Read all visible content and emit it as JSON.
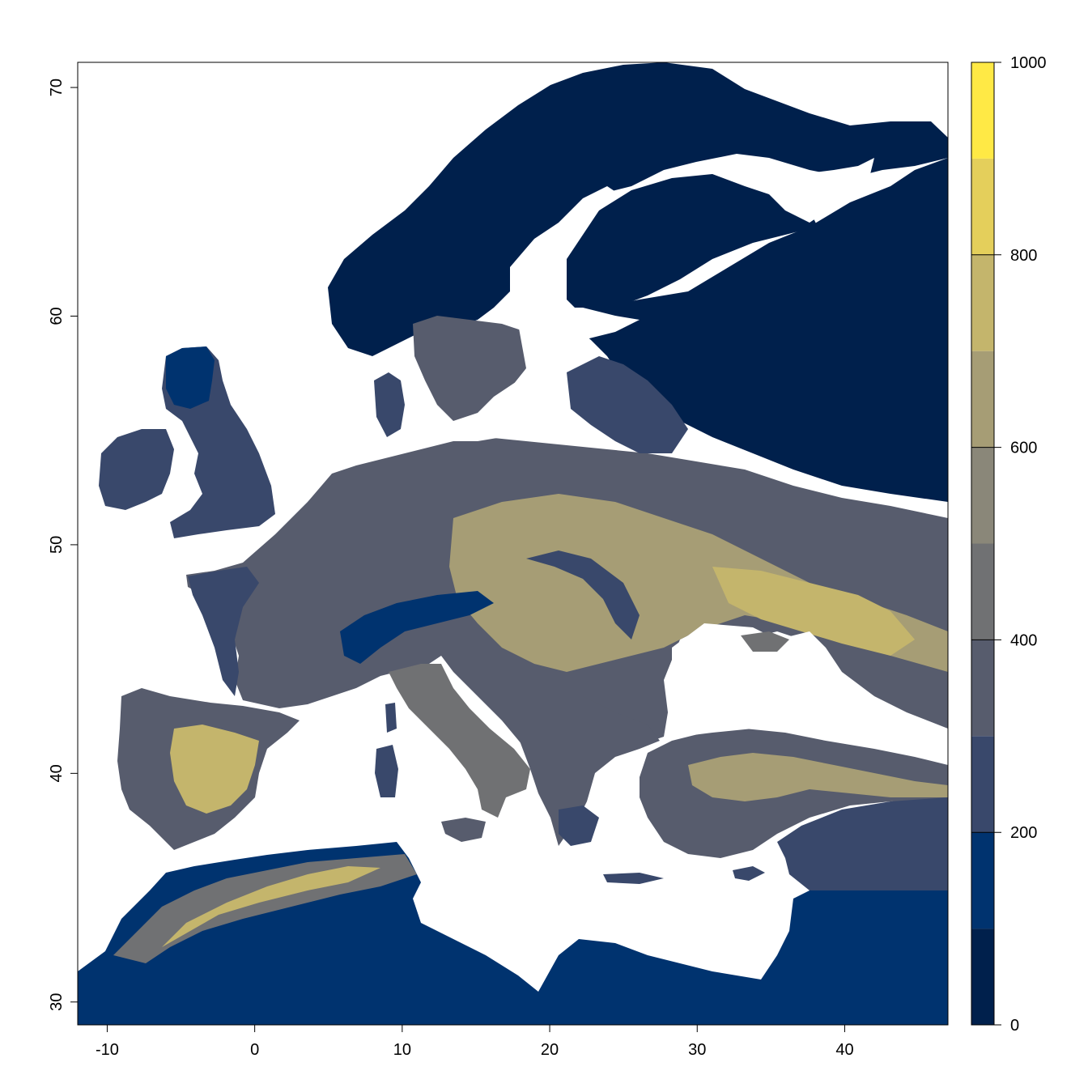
{
  "map": {
    "x_ticks": [
      "-10",
      "0",
      "10",
      "20",
      "30",
      "40"
    ],
    "y_ticks": [
      "30",
      "40",
      "50",
      "60",
      "70"
    ],
    "x_tick_values": [
      -10,
      0,
      10,
      20,
      30,
      40
    ],
    "y_tick_values": [
      30,
      40,
      50,
      60,
      70
    ],
    "xlim": [
      -12,
      47
    ],
    "ylim": [
      29,
      71.1
    ],
    "sea_color": "#ffffff",
    "frame": true
  },
  "legend": {
    "tick_labels": [
      "0",
      "200",
      "400",
      "600",
      "800",
      "1000"
    ],
    "tick_values": [
      0,
      200,
      400,
      600,
      800,
      1000
    ],
    "range": [
      0,
      1000
    ],
    "bin_width": 100,
    "colors": [
      "#00204c",
      "#00336f",
      "#39486b",
      "#575c6d",
      "#707173",
      "#8a8779",
      "#a69d75",
      "#c4b56c",
      "#e4cf5b",
      "#ffe945"
    ]
  }
}
